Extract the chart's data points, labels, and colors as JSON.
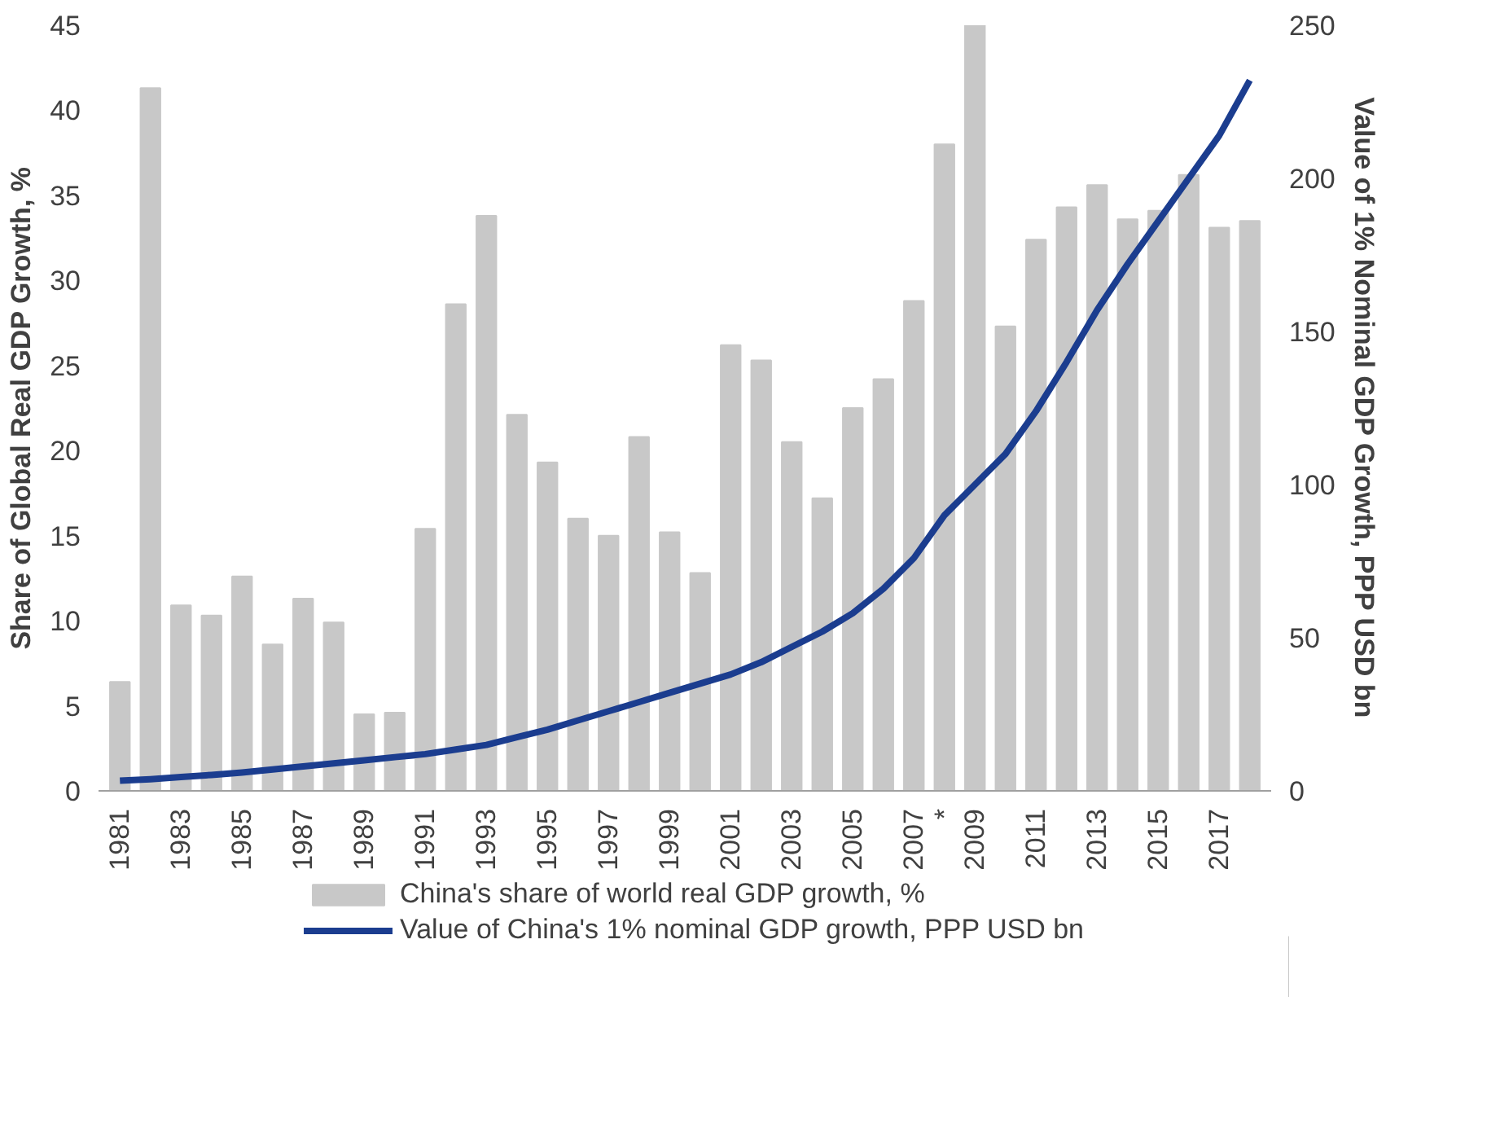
{
  "chart_data": {
    "type": "bar",
    "ylabel": "Share of Global Real GDP Growth, %",
    "y2label": "Value of 1% Nominal GDP Growth, PPP USD bn",
    "categories": [
      "1981",
      null,
      "1983",
      null,
      "1985",
      null,
      "1987",
      null,
      "1989",
      null,
      "1991",
      null,
      "1993",
      null,
      "1995",
      null,
      "1997",
      null,
      "1999",
      null,
      "2001",
      null,
      "2003",
      null,
      "2005",
      null,
      "2007",
      "*",
      "2009",
      null,
      "2011",
      null,
      "2013",
      null,
      "2015",
      null,
      "2017",
      null
    ],
    "series": [
      {
        "name": "China's share of world real GDP growth, %",
        "color": "#c8c8c8",
        "values": [
          6.4,
          41.3,
          10.9,
          10.3,
          12.6,
          8.6,
          11.3,
          9.9,
          4.5,
          4.6,
          15.4,
          28.6,
          33.8,
          22.1,
          19.3,
          16.0,
          15.0,
          20.8,
          15.2,
          12.8,
          26.2,
          25.3,
          20.5,
          17.2,
          22.5,
          24.2,
          28.8,
          38.0,
          45.0,
          27.3,
          32.4,
          34.3,
          35.6,
          33.6,
          34.1,
          36.2,
          33.1,
          33.5
        ]
      },
      {
        "name": "Value of China's 1% nominal GDP growth, PPP USD bn",
        "type": "line",
        "axis": "y2",
        "color": "#1b3d8f",
        "values": [
          3.3,
          3.8,
          4.5,
          5.2,
          6.0,
          7.0,
          8.0,
          9.0,
          10.0,
          11.0,
          12.0,
          13.5,
          15.0,
          17.5,
          20.0,
          23.0,
          26.0,
          29.0,
          32.0,
          35.0,
          38.0,
          42.0,
          47.0,
          52.0,
          58.0,
          66.0,
          76.0,
          90.0,
          100.0,
          110.0,
          124.0,
          140.0,
          157.0,
          172.0,
          186.0,
          200.0,
          214.0,
          232.0
        ]
      }
    ],
    "ylim": [
      0,
      45
    ],
    "yticks": [
      0,
      5,
      10,
      15,
      20,
      25,
      30,
      35,
      40,
      45
    ],
    "y2lim": [
      0,
      250
    ],
    "y2ticks": [
      0,
      50,
      100,
      150,
      200,
      250
    ],
    "legend": "bottom",
    "grid": false
  }
}
